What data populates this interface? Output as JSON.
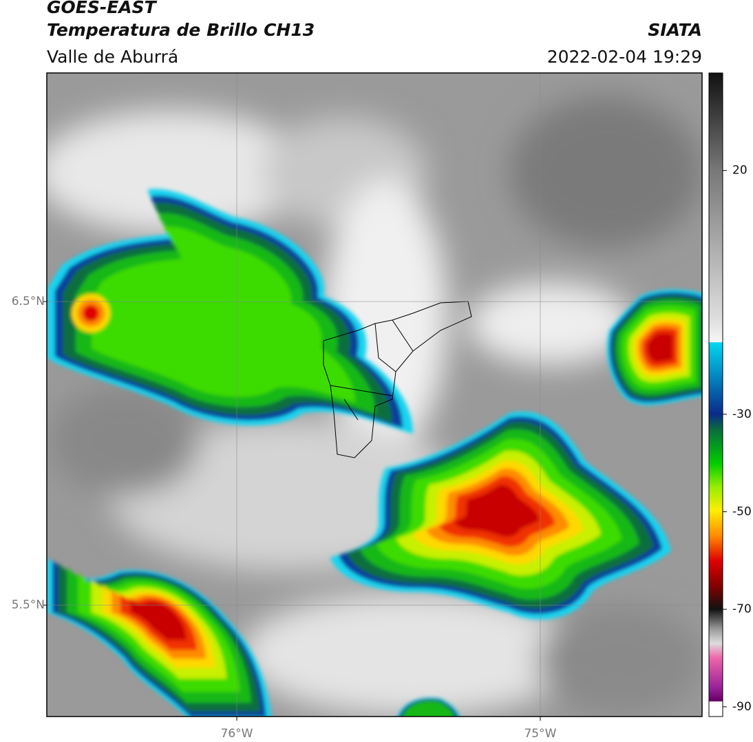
{
  "header": {
    "title": "GOES-EAST",
    "subtitle": "Temperatura de Brillo CH13",
    "region": "Valle de Aburrá",
    "source": "SIATA",
    "datetime": "2022-02-04 19:29"
  },
  "map": {
    "xlim": [
      -76.626,
      -74.467
    ],
    "ylim": [
      5.133,
      7.253
    ],
    "xticks": [
      {
        "value": -76,
        "label": "76°W"
      },
      {
        "value": -75,
        "label": "75°W"
      }
    ],
    "yticks": [
      {
        "value": 6.5,
        "label": "6.5°N"
      },
      {
        "value": 5.5,
        "label": "5.5°N"
      }
    ],
    "grid": true
  },
  "colorbar": {
    "lim": [
      -92,
      40
    ],
    "ticks": [
      20,
      -30,
      -50,
      -70,
      -90
    ]
  }
}
